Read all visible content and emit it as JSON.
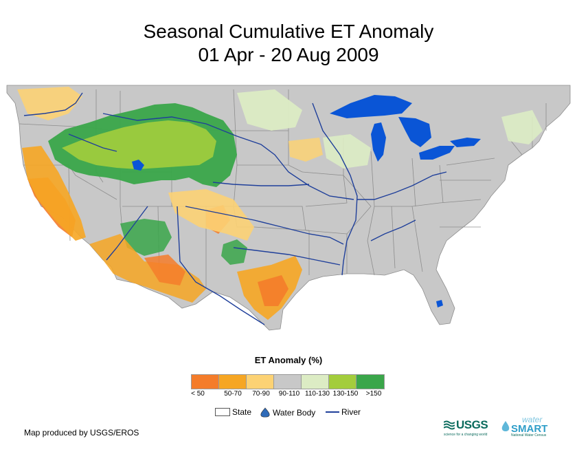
{
  "title": {
    "line1": "Seasonal Cumulative ET Anomaly",
    "line2": "01 Apr - 20 Aug 2009"
  },
  "legend": {
    "title": "ET Anomaly (%)",
    "classes": [
      {
        "label": "< 50",
        "color": "#f47c2a"
      },
      {
        "label": "50-70",
        "color": "#f6a623"
      },
      {
        "label": "70-90",
        "color": "#fcd274"
      },
      {
        "label": "90-110",
        "color": "#c8c8c8"
      },
      {
        "label": "110-130",
        "color": "#dcecc4"
      },
      {
        "label": "130-150",
        "color": "#a3cd3c"
      },
      {
        "label": ">150",
        "color": "#3aa64a"
      }
    ],
    "key": {
      "state": "State",
      "water_body": "Water Body",
      "river": "River"
    }
  },
  "colors": {
    "land": "#c8c8c8",
    "water": "#0a55d6",
    "river": "#1f3f9a",
    "state_line": "#8c8c8c"
  },
  "footer": "Map produced by USGS/EROS",
  "logos": {
    "usgs": "USGS",
    "usgs_tagline": "science for a changing world",
    "water": "water",
    "smart": "SMART",
    "smart_sub": "National Water Census"
  }
}
